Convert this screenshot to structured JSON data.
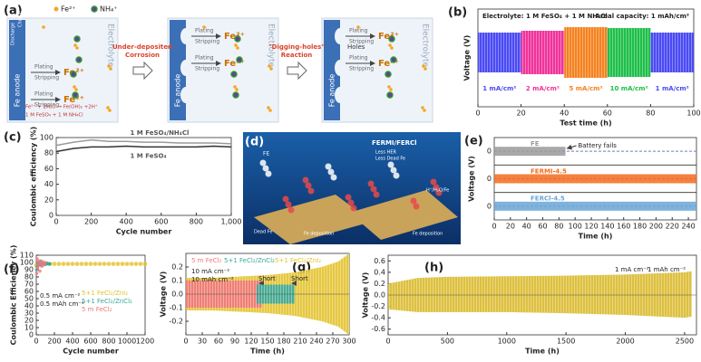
{
  "schematic_a": {
    "panel_label": "(a)",
    "legend": [
      "Fe²⁺",
      "NH₄⁺"
    ],
    "anode": "Fe anode",
    "electrolyte": "Electrolyte",
    "discharge": "Discharge",
    "charge": "Charge",
    "plating": "Plating",
    "stripping": "Stripping",
    "ion": "Fe²⁺",
    "reaction": "Fe²⁺ + 2H₂O → Fe(OH)₂ +2H⁺",
    "electrolyte_recipe": "1 M FeSO₄ + 1 M NH₄Cl",
    "step1": [
      "Under-deposited",
      "Corrosion"
    ],
    "step2": [
      "\"Digging-holes\"",
      "Reaction"
    ],
    "holes": "Holes"
  },
  "schematic_d": {
    "panel_label": "(d)",
    "title": "FERMI/FERCl",
    "left_label": "FE",
    "bullets": [
      "Less HER",
      "Less Dead Fe"
    ],
    "dead_fe": "Dead Fe",
    "deposition": "Fe deposition",
    "species": "H⁺/H₂O/Fe"
  },
  "chart_data": [
    {
      "type": "band",
      "panel_label": "(b)",
      "title": "Electrolyte: 1 M FeSO₄ + 1 M NH₄Cl",
      "subtitle": "Areal capacity: 1 mAh/cm²",
      "x_label": "Test time (h)",
      "y_label": "Voltage (V)",
      "xlim": [
        0,
        100
      ],
      "xticks": [
        0,
        20,
        40,
        60,
        80,
        100
      ],
      "segments": [
        {
          "name": "1 mA/cm²",
          "color": "#4a4af5",
          "x": [
            0,
            20
          ]
        },
        {
          "name": "2 mA/cm²",
          "color": "#f0339a",
          "x": [
            20,
            40
          ]
        },
        {
          "name": "5 mA/cm²",
          "color": "#f58220",
          "x": [
            40,
            60
          ]
        },
        {
          "name": "10 mA/cm²",
          "color": "#1fbf4a",
          "x": [
            60,
            80
          ]
        },
        {
          "name": "1 mA/cm²",
          "color": "#4a4af5",
          "x": [
            80,
            100
          ]
        }
      ]
    },
    {
      "type": "line",
      "panel_label": "(c)",
      "x_label": "Cycle number",
      "y_label": "Coulombic efficiency (%)",
      "xlim": [
        0,
        1000
      ],
      "xticks": [
        0,
        200,
        400,
        600,
        800,
        {
          "value": 1000,
          "label": "1,000"
        }
      ],
      "ylim": [
        0,
        100
      ],
      "yticks": [
        0,
        20,
        40,
        60,
        80,
        100
      ],
      "series": [
        {
          "name": "1 M FeSO₄/NH₄Cl",
          "color": "#9a9a9a",
          "x": [
            0,
            100,
            200,
            300,
            400,
            500,
            600,
            700,
            800,
            900,
            1000
          ],
          "values": [
            90,
            94,
            97,
            95,
            95,
            94,
            94,
            93,
            93,
            93,
            92
          ]
        },
        {
          "name": "1 M FeSO₄",
          "color": "#333333",
          "x": [
            0,
            100,
            200,
            300,
            400,
            500,
            600,
            700,
            800,
            900,
            1000
          ],
          "values": [
            82,
            86,
            88,
            88,
            89,
            88,
            88,
            88,
            88,
            89,
            88
          ]
        }
      ]
    },
    {
      "type": "stacked",
      "panel_label": "(e)",
      "x_label": "Time (h)",
      "y_label": "Voltage (V)",
      "xlim": [
        0,
        250
      ],
      "xticks": [
        0,
        20,
        40,
        60,
        80,
        100,
        120,
        140,
        160,
        180,
        200,
        220,
        240
      ],
      "yticks": [
        0
      ],
      "annotation": "Battery fails",
      "series": [
        {
          "name": "FE",
          "color": "#9a9a9a",
          "x": [
            0,
            88
          ]
        },
        {
          "name": "FERMI-4.5",
          "color": "#f26b1d",
          "x": [
            0,
            250
          ]
        },
        {
          "name": "FERCl-4.5",
          "color": "#6aa6d6",
          "x": [
            0,
            250
          ]
        }
      ]
    },
    {
      "type": "scatter",
      "panel_label": "(f)",
      "x_label": "Cycle number",
      "y_label": "Coulombic Efficiency (%)",
      "xlim": [
        0,
        1200
      ],
      "xticks": [
        0,
        200,
        400,
        600,
        800,
        1000,
        1200
      ],
      "ylim": [
        0,
        110
      ],
      "yticks": [
        0,
        10,
        20,
        30,
        40,
        50,
        60,
        70,
        80,
        90,
        100,
        110
      ],
      "annotations": [
        "0.5 mA cm⁻²",
        "0.5 mAh cm⁻²"
      ],
      "series": [
        {
          "name": "5+1 FeCl₂/ZnI₂",
          "color": "#e3c22c",
          "x": [
            0,
            50,
            100,
            150,
            200,
            250,
            300,
            350,
            400,
            450,
            500,
            550,
            600,
            650,
            700,
            750,
            800,
            850,
            900,
            950,
            1000,
            1050,
            1100,
            1150,
            1200
          ],
          "values": [
            96,
            98,
            98,
            98,
            98,
            98,
            98,
            98,
            98,
            98,
            98,
            98,
            98,
            98,
            98,
            98,
            98,
            98,
            98,
            98,
            98,
            98,
            98,
            98,
            98
          ]
        },
        {
          "name": "5+1 FeCl₂/ZnCl₂",
          "color": "#3aa89a",
          "x": [
            5,
            10,
            15,
            20,
            30,
            40,
            50,
            60,
            70,
            80,
            90,
            100,
            110,
            120,
            130,
            140,
            150
          ],
          "values": [
            90,
            94,
            99,
            96,
            100,
            97,
            102,
            95,
            98,
            99,
            97,
            98,
            98,
            99,
            98,
            98,
            98
          ]
        },
        {
          "name": "5 m FeCl₂",
          "color": "#f0777a",
          "x": [
            5,
            10,
            15,
            20,
            25,
            30,
            40,
            50,
            60,
            70,
            80,
            90,
            100
          ],
          "values": [
            85,
            105,
            92,
            100,
            96,
            102,
            88,
            99,
            95,
            101,
            97,
            98,
            100
          ]
        }
      ]
    },
    {
      "type": "envelope",
      "panel_label": "(g)",
      "x_label": "Time (h)",
      "y_label": "Voltage (V)",
      "xlim": [
        0,
        300
      ],
      "xticks": [
        0,
        30,
        60,
        90,
        120,
        150,
        180,
        210,
        240,
        270,
        300
      ],
      "ylim": [
        -0.3,
        0.3
      ],
      "yticks": [
        -0.2,
        -0.1,
        {
          "value": 0,
          "label": "0.0"
        },
        0.1,
        0.2
      ],
      "annotations": [
        "10 mA cm⁻²",
        "10 mAh cm⁻²"
      ],
      "markers": [
        "Short",
        "Short"
      ],
      "series": [
        {
          "name": "5+1 FeCl₂/ZnI₂",
          "color": "#e3c22c",
          "x": [
            0,
            50,
            100,
            150,
            200,
            250,
            280,
            300
          ],
          "upper": [
            0.12,
            0.12,
            0.13,
            0.14,
            0.16,
            0.2,
            0.24,
            0.3
          ],
          "lower": [
            -0.12,
            -0.12,
            -0.13,
            -0.14,
            -0.16,
            -0.2,
            -0.24,
            -0.3
          ]
        },
        {
          "name": "5 m FeCl₂",
          "color": "#f0777a",
          "x": [
            0,
            140
          ],
          "upper": [
            0.1,
            0.1
          ],
          "lower": [
            -0.1,
            -0.1
          ]
        },
        {
          "name": "5+1 FeCl₂/ZnCl₂",
          "color": "#3aa89a",
          "x": [
            130,
            200
          ],
          "upper": [
            0.07,
            0.07
          ],
          "lower": [
            -0.07,
            -0.07
          ]
        }
      ]
    },
    {
      "type": "envelope",
      "panel_label": "(h)",
      "x_label": "Time (h)",
      "y_label": "Voltage (V)",
      "xlim": [
        0,
        2600
      ],
      "xticks": [
        0,
        500,
        1000,
        1500,
        2000,
        2500
      ],
      "ylim": [
        -0.7,
        0.7
      ],
      "yticks": [
        -0.6,
        -0.4,
        -0.2,
        {
          "value": 0,
          "label": "0.0"
        },
        0.2,
        0.4,
        0.6
      ],
      "annotations": [
        "1 mA cm⁻²",
        "1 mAh cm⁻²"
      ],
      "series": [
        {
          "color": "#d9b92a",
          "x": [
            0,
            250,
            500,
            1000,
            1500,
            2000,
            2500,
            2560
          ],
          "upper": [
            0.2,
            0.3,
            0.32,
            0.33,
            0.34,
            0.36,
            0.4,
            0.42
          ],
          "lower": [
            -0.25,
            -0.3,
            -0.3,
            -0.3,
            -0.32,
            -0.35,
            -0.4,
            -0.38
          ]
        }
      ]
    }
  ]
}
